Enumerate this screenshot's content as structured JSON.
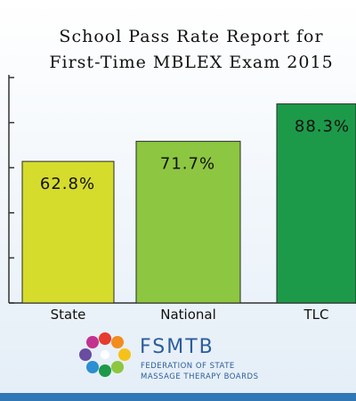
{
  "chart_data": {
    "type": "bar",
    "title": "School Pass Rate Report for",
    "subtitle": "First-Time MBLEX Exam 2015",
    "categories": [
      "State",
      "National",
      "TLC"
    ],
    "values": [
      62.8,
      71.7,
      88.3
    ],
    "value_labels": [
      "62.8%",
      "71.7%",
      "88.3%"
    ],
    "colors": [
      "#d5dc2c",
      "#8dc641",
      "#1c9a49"
    ],
    "ylim": [
      0,
      100
    ],
    "yticks": [
      0,
      20,
      40,
      60,
      80,
      100
    ]
  },
  "logo": {
    "name": "FSMTB",
    "line1": "FEDERATION OF STATE",
    "line2": "MASSAGE THERAPY BOARDS"
  }
}
